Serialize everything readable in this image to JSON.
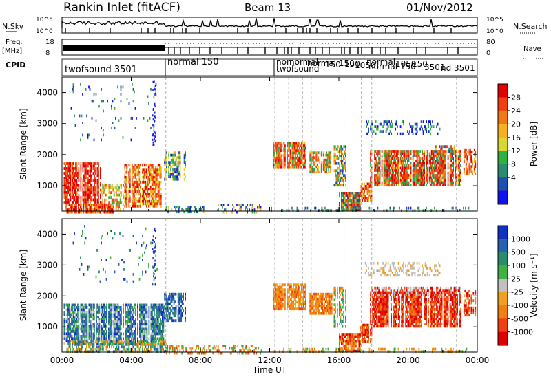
{
  "header": {
    "station": "Rankin Inlet (fitACF)",
    "beam": "Beam 13",
    "date": "01/Nov/2012"
  },
  "summary_panels": {
    "nsky": {
      "left_label": "N.Sky",
      "right_label": "N.Search",
      "left_ticks": [
        "10^5",
        "10^0"
      ],
      "right_ticks": [
        "10^5",
        "10^0"
      ]
    },
    "freq": {
      "left_label": "Freq.",
      "left_unit": "[MHz]",
      "right_label": "Nave",
      "left_ticks": [
        "18",
        "8"
      ],
      "right_ticks": [
        "80",
        "0"
      ]
    },
    "cpid": {
      "label": "CPID",
      "segments": [
        "twofsound 3501",
        "normal 150",
        "nor",
        "twofsound",
        "normal",
        "normal 150",
        "150",
        "150",
        "1050",
        "normal",
        "normal 150",
        "1050",
        "150",
        "3501",
        "nd 3501"
      ]
    }
  },
  "chart_data": [
    {
      "type": "heatmap",
      "name": "power",
      "ylabel": "Slant Range [km]",
      "xlabel": "",
      "x_ticks": [
        "00:00",
        "04:00",
        "08:00",
        "12:00",
        "16:00",
        "20:00",
        "00:00"
      ],
      "y_ticks": [
        1000,
        2000,
        3000,
        4000
      ],
      "ylim": [
        180,
        4500
      ],
      "xlim_hours": [
        0,
        24
      ],
      "colorbar": {
        "label": "Power [dB]",
        "ticks": [
          "28",
          "24",
          "20",
          "16",
          "12",
          "8",
          "4"
        ],
        "colors": [
          "#e40000",
          "#f04010",
          "#f07818",
          "#f8b020",
          "#d8d830",
          "#30b040",
          "#2a8c6c",
          "#2050b0",
          "#1010f0"
        ]
      }
    },
    {
      "type": "heatmap",
      "name": "velocity",
      "ylabel": "Slant Range [km]",
      "xlabel": "Time UT",
      "x_ticks": [
        "00:00",
        "04:00",
        "08:00",
        "12:00",
        "16:00",
        "20:00",
        "00:00"
      ],
      "y_ticks": [
        1000,
        2000,
        3000,
        4000
      ],
      "ylim": [
        180,
        4500
      ],
      "xlim_hours": [
        0,
        24
      ],
      "colorbar": {
        "label": "Velocity [m s⁻¹]",
        "ticks": [
          "1000",
          "500",
          "100",
          "25",
          "-25",
          "-100",
          "-500",
          "-1000"
        ],
        "colors": [
          "#1030c0",
          "#2a60b0",
          "#2a8c6c",
          "#40b040",
          "#c0c0c0",
          "#f0a020",
          "#f08010",
          "#f04010",
          "#e00000"
        ]
      }
    }
  ],
  "colors": {
    "low_power": "#1010f0",
    "high_power": "#e40000",
    "separator": "#b0b0b0"
  }
}
